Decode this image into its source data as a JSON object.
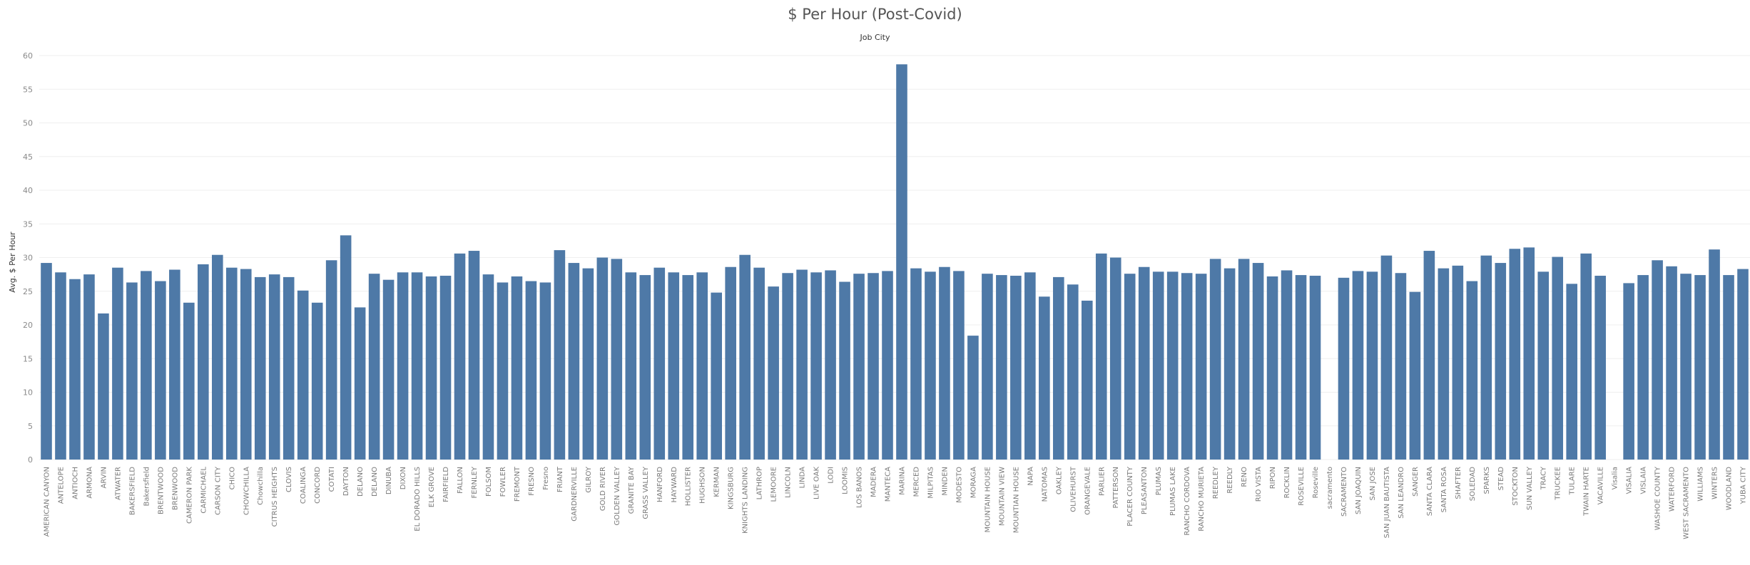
{
  "chart_data": {
    "type": "bar",
    "title": "$ Per Hour (Post-Covid)",
    "subtitle": "Job City",
    "xlabel": "",
    "ylabel": "Avg. $ Per Hour",
    "ylim": [
      0,
      60
    ],
    "yticks": [
      0,
      5,
      10,
      15,
      20,
      25,
      30,
      35,
      40,
      45,
      50,
      55,
      60
    ],
    "grid": true,
    "bar_color": "#4e79a7",
    "categories": [
      "AMERICAN CANYON",
      "ANTELOPE",
      "ANTIOCH",
      "ARMONA",
      "ARVIN",
      "ATWATER",
      "BAKERSFIELD",
      "Bakersfield",
      "BRENTWOOD",
      "BRENWOOD",
      "CAMERON PARK",
      "CARMICHAEL",
      "CARSON CITY",
      "CHICO",
      "CHOWCHILLA",
      "Chowchilla",
      "CITRUS HEIGHTS",
      "CLOVIS",
      "COALINGA",
      "CONCORD",
      "COTATI",
      "DAYTON",
      "DELANO",
      "DELANO",
      "DINUBA",
      "DIXON",
      "EL DORADO HILLS",
      "ELK GROVE",
      "FAIRFIELD",
      "FALLON",
      "FERNLEY",
      "FOLSOM",
      "FOWLER",
      "FREMONT",
      "FRESNO",
      "Fresno",
      "FRIANT",
      "GARDNERVILLE",
      "GILROY",
      "GOLD RIVER",
      "GOLDEN VALLEY",
      "GRANITE BAY",
      "GRASS VALLEY",
      "HANFORD",
      "HAYWARD",
      "HOLLISTER",
      "HUGHSON",
      "KERMAN",
      "KINGSBURG",
      "KNIGHTS LANDING",
      "LATHROP",
      "LEMOORE",
      "LINCOLN",
      "LINDA",
      "LIVE OAK",
      "LODI",
      "LOOMIS",
      "LOS BANOS",
      "MADERA",
      "MANTECA",
      "MARINA",
      "MERCED",
      "MILPITAS",
      "MINDEN",
      "MODESTO",
      "MORAGA",
      "MOUNTAIN HOUSE",
      "MOUNTAIN VIEW",
      "MOUNTIAN HOUSE",
      "NAPA",
      "NATOMAS",
      "OAKLEY",
      "OLIVEHURST",
      "ORANGEVALE",
      "PARLIER",
      "PATTERSON",
      "PLACER COUNTY",
      "PLEASANTON",
      "PLUMAS",
      "PLUMAS LAKE",
      "RANCHO CORDOVA",
      "RANCHO MURIETA",
      "REEDLEY",
      "REEDLY",
      "RENO",
      "RIO VISTA",
      "RIPON",
      "ROCKLIN",
      "ROSEVILLE",
      "Roseville",
      "sacramento",
      "SACRAMENTO",
      "SAN JOAQUIN",
      "SAN JOSE",
      "SAN JUAN BAUTISTA",
      "SAN LEANDRO",
      "SANGER",
      "SANTA CLARA",
      "SANTA ROSA",
      "SHAFTER",
      "SOLEDAD",
      "SPARKS",
      "STEAD",
      "STOCKTON",
      "SUN VALLEY",
      "TRACY",
      "TRUCKEE",
      "TULARE",
      "TWAIN HARTE",
      "VACAVILLE",
      "Visalia",
      "VISALIA",
      "VISLAIA",
      "WASHOE COUNTY",
      "WATERFORD",
      "WEST SACRAMENTO",
      "WILLIAMS",
      "WINTERS",
      "WOODLAND",
      "YUBA CITY"
    ],
    "values": [
      29.2,
      27.8,
      26.8,
      27.5,
      21.7,
      28.5,
      26.3,
      28.0,
      26.5,
      28.2,
      23.3,
      29.0,
      30.4,
      28.5,
      28.3,
      27.1,
      27.5,
      27.1,
      25.1,
      23.3,
      29.6,
      33.3,
      22.6,
      27.6,
      26.7,
      27.8,
      27.8,
      27.2,
      27.3,
      30.6,
      31.0,
      27.5,
      26.3,
      27.2,
      26.5,
      26.3,
      31.1,
      29.2,
      28.4,
      30.0,
      29.8,
      27.8,
      27.4,
      28.5,
      27.8,
      27.4,
      27.8,
      24.8,
      28.6,
      30.4,
      28.5,
      25.7,
      27.7,
      28.2,
      27.8,
      28.1,
      26.4,
      27.6,
      27.7,
      28.0,
      58.7,
      28.4,
      27.9,
      28.6,
      28.0,
      18.4,
      27.6,
      27.4,
      27.3,
      27.8,
      24.2,
      27.1,
      26.0,
      23.6,
      30.6,
      30.0,
      27.6,
      28.6,
      27.9,
      27.9,
      27.7,
      27.6,
      29.8,
      28.4,
      29.8,
      29.2,
      27.2,
      28.1,
      27.4,
      27.3,
      0,
      27.0,
      28.0,
      27.9,
      30.3,
      27.7,
      24.9,
      31.0,
      28.4,
      28.8,
      26.5,
      30.3,
      29.2,
      31.3,
      31.5,
      27.9,
      30.1,
      26.1,
      30.6,
      27.3,
      0,
      26.2,
      27.4,
      29.6,
      28.7,
      27.6,
      27.4,
      31.2,
      27.4,
      28.3
    ]
  }
}
